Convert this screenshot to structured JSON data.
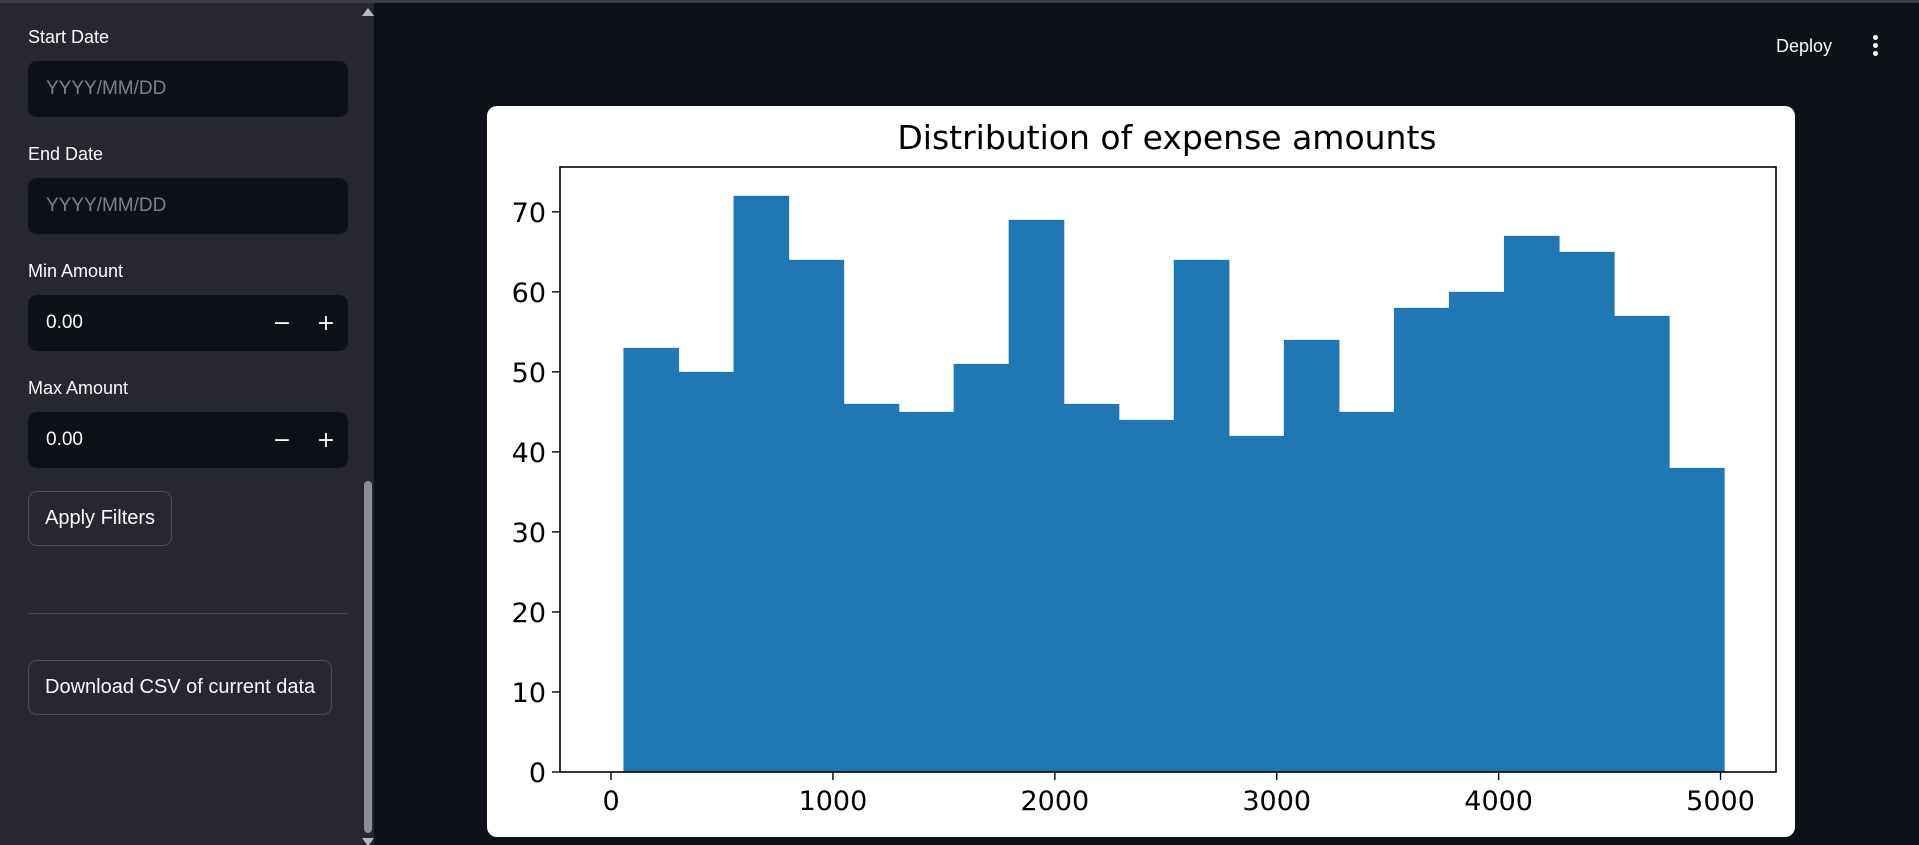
{
  "sidebar": {
    "start_date": {
      "label": "Start Date",
      "placeholder": "YYYY/MM/DD"
    },
    "end_date": {
      "label": "End Date",
      "placeholder": "YYYY/MM/DD"
    },
    "min_amount": {
      "label": "Min Amount",
      "value": "0.00"
    },
    "max_amount": {
      "label": "Max Amount",
      "value": "0.00"
    },
    "apply_button": "Apply Filters",
    "download_button": "Download CSV of current data",
    "stepper_minus": "−",
    "stepper_plus": "+"
  },
  "header": {
    "deploy_label": "Deploy",
    "menu_icon": "kebab-menu-icon"
  },
  "chart_data": {
    "type": "bar",
    "title": "Distribution of expense amounts",
    "xlabel": "",
    "ylabel": "",
    "bin_edges": [
      56,
      304,
      552,
      800,
      1048,
      1296,
      1544,
      1792,
      2040,
      2288,
      2536,
      2784,
      3032,
      3280,
      3528,
      3776,
      4024,
      4272,
      4520,
      4768,
      5016
    ],
    "values": [
      53,
      50,
      72,
      64,
      46,
      45,
      51,
      69,
      46,
      44,
      64,
      42,
      54,
      45,
      58,
      60,
      67,
      65,
      57,
      38
    ],
    "xlim": [
      -230,
      5250
    ],
    "ylim": [
      0,
      75.6
    ],
    "xticks": [
      0,
      1000,
      2000,
      3000,
      4000,
      5000
    ],
    "yticks": [
      0,
      10,
      20,
      30,
      40,
      50,
      60,
      70
    ],
    "bar_color": "#1f77b4",
    "grid": false,
    "legend": false
  }
}
